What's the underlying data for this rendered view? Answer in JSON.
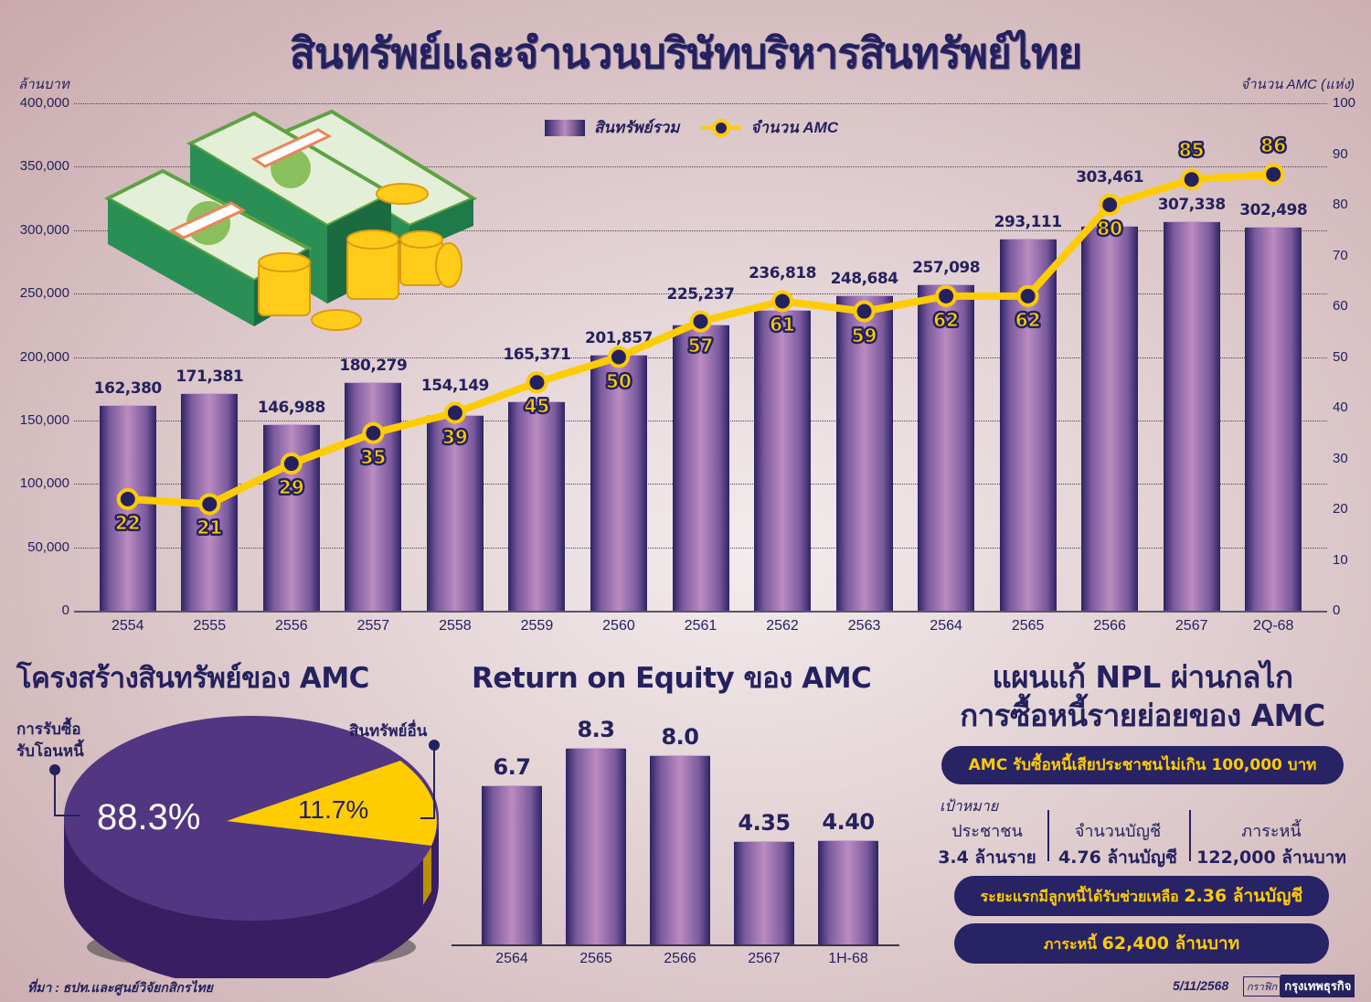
{
  "header": {
    "title": "สินทรัพย์และจำนวนบริษัทบริหารสินทรัพย์ไทย",
    "left_axis_unit": "ล้านบาท",
    "right_axis_unit": "จำนวน AMC (แห่ง)"
  },
  "legend": {
    "bar_label": "สินทรัพย์รวม",
    "line_label": "จำนวน AMC"
  },
  "main_chart": {
    "left_ticks": [
      "400,000",
      "350,000",
      "300,000",
      "250,000",
      "200,000",
      "150,000",
      "100,000",
      "50,000",
      "0"
    ],
    "right_ticks": [
      "100",
      "90",
      "80",
      "70",
      "60",
      "50",
      "40",
      "30",
      "20",
      "10",
      "0"
    ],
    "categories": [
      "2554",
      "2555",
      "2556",
      "2557",
      "2558",
      "2559",
      "2560",
      "2561",
      "2562",
      "2563",
      "2564",
      "2565",
      "2566",
      "2567",
      "2Q-68"
    ],
    "asset_labels": [
      "162,380",
      "171,381",
      "146,988",
      "180,279",
      "154,149",
      "165,371",
      "201,857",
      "225,237",
      "236,818",
      "248,684",
      "257,098",
      "293,111",
      "303,461",
      "307,338",
      "302,498"
    ],
    "amc_labels": [
      "22",
      "21",
      "29",
      "35",
      "39",
      "45",
      "50",
      "57",
      "61",
      "59",
      "62",
      "62",
      "80",
      "85",
      "86"
    ]
  },
  "pie_section": {
    "title": "โครงสร้างสินทรัพย์ของ AMC",
    "left_callout_line1": "การรับซื้อ",
    "left_callout_line2": "รับโอนหนี้",
    "right_callout": "สินทรัพย์อื่น",
    "major_pct": "88.3%",
    "minor_pct": "11.7%"
  },
  "roe_section": {
    "title": "Return on Equity ของ AMC",
    "categories": [
      "2564",
      "2565",
      "2566",
      "2567",
      "1H-68"
    ],
    "labels": [
      "6.7",
      "8.3",
      "8.0",
      "4.35",
      "4.40"
    ]
  },
  "npl_section": {
    "title_line1": "แผนแก้ NPL ผ่านกลไก",
    "title_line2": "การซื้อหนี้รายย่อยของ AMC",
    "pill1": "AMC รับซื้อหนี้เสียประชาชนไม่เกิน 100,000 บาท",
    "target_heading": "เป้าหมาย",
    "targets": [
      {
        "label": "ประชาชน",
        "value": "3.4 ล้านราย"
      },
      {
        "label": "จำนวนบัญชี",
        "value": "4.76 ล้านบัญชี"
      },
      {
        "label": "ภาระหนี้",
        "value": "122,000 ล้านบาท"
      }
    ],
    "pill2_prefix": "ระยะแรกมีลูกหนี้ได้รับช่วยเหลือ",
    "pill2_value": "2.36 ล้านบัญชี",
    "pill3_prefix": "ภาระหนี้",
    "pill3_value": "62,400 ล้านบาท"
  },
  "footer": {
    "source": "ที่มา : ธปท.และศูนย์วิจัยกสิกรไทย",
    "date": "5/11/2568",
    "credit_box": "กราฟิก",
    "credit_brand": "กรุงเทพธุรกิจ"
  },
  "colors": {
    "navy": "#25215e",
    "yellow": "#ffcc00",
    "bar_light": "#bc8bc0",
    "pie_purple": "#533682",
    "background": "#e2d1d3"
  },
  "chart_data": [
    {
      "type": "bar+line",
      "title": "สินทรัพย์และจำนวนบริษัทบริหารสินทรัพย์ไทย",
      "categories": [
        "2554",
        "2555",
        "2556",
        "2557",
        "2558",
        "2559",
        "2560",
        "2561",
        "2562",
        "2563",
        "2564",
        "2565",
        "2566",
        "2567",
        "2Q-68"
      ],
      "series": [
        {
          "name": "สินทรัพย์รวม",
          "type": "bar",
          "axis": "left",
          "values": [
            162380,
            171381,
            146988,
            180279,
            154149,
            165371,
            201857,
            225237,
            236818,
            248684,
            257098,
            293111,
            303461,
            307338,
            302498
          ]
        },
        {
          "name": "จำนวน AMC",
          "type": "line",
          "axis": "right",
          "values": [
            22,
            21,
            29,
            35,
            39,
            45,
            50,
            57,
            61,
            59,
            62,
            62,
            80,
            85,
            86
          ]
        }
      ],
      "ylabel": "ล้านบาท",
      "ylim": [
        0,
        400000
      ],
      "y2label": "จำนวน AMC (แห่ง)",
      "y2lim": [
        0,
        100
      ],
      "grid": true,
      "legend_position": "top-center"
    },
    {
      "type": "pie",
      "title": "โครงสร้างสินทรัพย์ของ AMC",
      "categories": [
        "การรับซื้อรับโอนหนี้",
        "สินทรัพย์อื่น"
      ],
      "values": [
        88.3,
        11.7
      ]
    },
    {
      "type": "bar",
      "title": "Return on Equity ของ AMC",
      "categories": [
        "2564",
        "2565",
        "2566",
        "2567",
        "1H-68"
      ],
      "values": [
        6.7,
        8.3,
        8.0,
        4.35,
        4.4
      ]
    }
  ]
}
